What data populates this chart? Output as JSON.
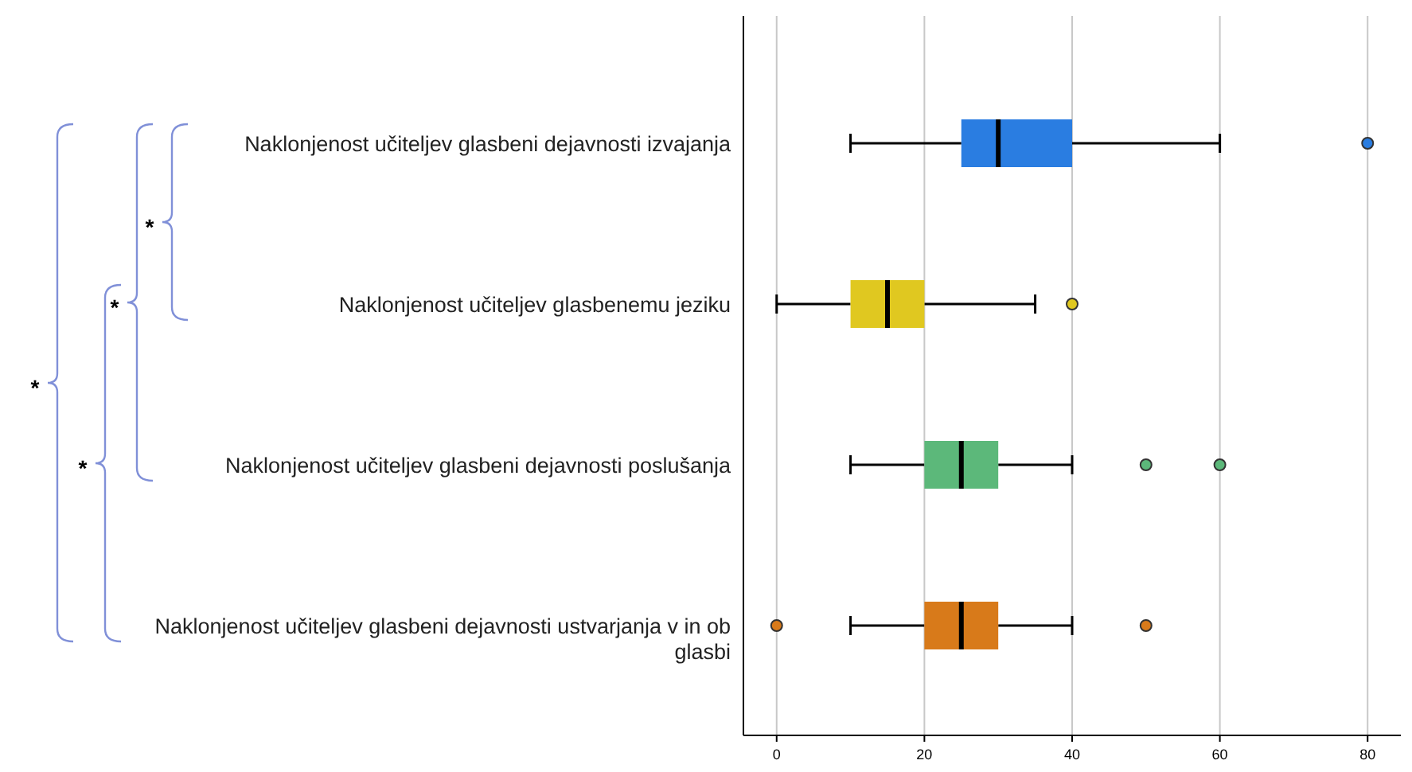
{
  "chart_data": {
    "type": "box",
    "orientation": "horizontal",
    "categories": [
      "Naklonjenost učiteljev glasbeni dejavnosti izvajanja",
      "Naklonjenost učiteljev glasbenemu jeziku",
      "Naklonjenost učiteljev glasbeni dejavnosti poslušanja",
      "Naklonjenost učiteljev glasbeni dejavnosti ustvarjanja v in ob glasbi"
    ],
    "boxes": [
      {
        "low": 10,
        "q1": 25,
        "median": 30,
        "q3": 40,
        "high": 60,
        "outliers": [
          80
        ]
      },
      {
        "low": 0,
        "q1": 10,
        "median": 15,
        "q3": 20,
        "high": 35,
        "outliers": [
          40
        ]
      },
      {
        "low": 10,
        "q1": 20,
        "median": 25,
        "q3": 30,
        "high": 40,
        "outliers": [
          50,
          60
        ]
      },
      {
        "low": 10,
        "q1": 20,
        "median": 25,
        "q3": 30,
        "high": 40,
        "outliers": [
          0,
          50
        ]
      }
    ],
    "colors": [
      "#2a7de1",
      "#e0c820",
      "#5cb87a",
      "#d87a1a"
    ],
    "xlim": [
      -4.5,
      84.5
    ],
    "xticks": [
      0,
      20,
      40,
      60,
      80
    ],
    "grid": "x",
    "annotations": [
      "*",
      "*",
      "*",
      "*"
    ]
  }
}
